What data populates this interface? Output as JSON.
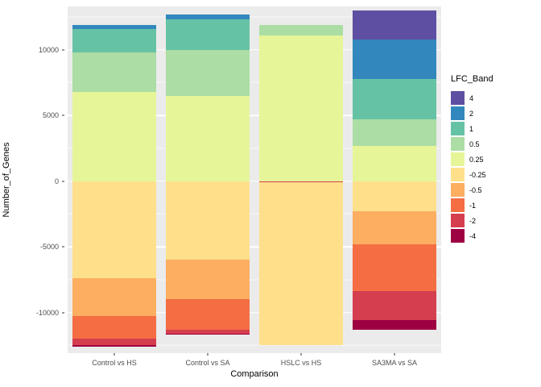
{
  "figure": {
    "background": "#FFFFFF",
    "panel_background": "#EBEBEB",
    "gridline_color": "#FFFFFF",
    "axis_text_color": "#4D4D4D"
  },
  "chart_data": {
    "type": "bar",
    "stacked": true,
    "diverging": true,
    "title": "",
    "xlabel": "Comparison",
    "ylabel": "Number_of_Genes",
    "legend_title": "LFC_Band",
    "legend_position": "right",
    "grid": true,
    "categories": [
      "Control vs HS",
      "Control vs SA",
      "HSLC vs HS",
      "SA3MA vs SA"
    ],
    "ylim": [
      -13100,
      13300
    ],
    "y_major_ticks": [
      10000,
      5000,
      0,
      -5000,
      -10000
    ],
    "y_minor_ticks": [
      12500,
      7500,
      2500,
      -2500,
      -7500,
      -12500
    ],
    "bands": [
      {
        "label": "4",
        "color": "#5E4FA2"
      },
      {
        "label": "2",
        "color": "#3288BD"
      },
      {
        "label": "1",
        "color": "#66C2A5"
      },
      {
        "label": "0.5",
        "color": "#ABDDA4"
      },
      {
        "label": "0.25",
        "color": "#E6F598"
      },
      {
        "label": "-0.25",
        "color": "#FEE08B"
      },
      {
        "label": "-0.5",
        "color": "#FDAE61"
      },
      {
        "label": "-1",
        "color": "#F46D43"
      },
      {
        "label": "-2",
        "color": "#D53E4F"
      },
      {
        "label": "-4",
        "color": "#9E0142"
      }
    ],
    "series": [
      {
        "category": "Control vs HS",
        "positive": [
          {
            "band": "0.25",
            "value": 6800
          },
          {
            "band": "0.5",
            "value": 3000
          },
          {
            "band": "1",
            "value": 1800
          },
          {
            "band": "2",
            "value": 300
          }
        ],
        "negative": [
          {
            "band": "-0.25",
            "value": 7400
          },
          {
            "band": "-0.5",
            "value": 2900
          },
          {
            "band": "-1",
            "value": 1700
          },
          {
            "band": "-2",
            "value": 500
          },
          {
            "band": "-4",
            "value": 100
          }
        ]
      },
      {
        "category": "Control vs SA",
        "positive": [
          {
            "band": "0.25",
            "value": 6500
          },
          {
            "band": "0.5",
            "value": 3500
          },
          {
            "band": "1",
            "value": 2300
          },
          {
            "band": "2",
            "value": 400
          }
        ],
        "negative": [
          {
            "band": "-0.25",
            "value": 6000
          },
          {
            "band": "-0.5",
            "value": 3000
          },
          {
            "band": "-1",
            "value": 2300
          },
          {
            "band": "-2",
            "value": 300
          },
          {
            "band": "-4",
            "value": 100
          }
        ]
      },
      {
        "category": "HSLC vs HS",
        "positive": [
          {
            "band": "0.25",
            "value": 11100
          },
          {
            "band": "0.5",
            "value": 800
          }
        ],
        "negative": [
          {
            "band": "-2",
            "value": 100
          },
          {
            "band": "-0.25",
            "value": 12400
          }
        ]
      },
      {
        "category": "SA3MA vs SA",
        "positive": [
          {
            "band": "0.25",
            "value": 2700
          },
          {
            "band": "0.5",
            "value": 2000
          },
          {
            "band": "1",
            "value": 3100
          },
          {
            "band": "2",
            "value": 3000
          },
          {
            "band": "4",
            "value": 2200
          }
        ],
        "negative": [
          {
            "band": "-0.25",
            "value": 2300
          },
          {
            "band": "-0.5",
            "value": 2500
          },
          {
            "band": "-1",
            "value": 3600
          },
          {
            "band": "-2",
            "value": 2200
          },
          {
            "band": "-4",
            "value": 700
          }
        ]
      }
    ]
  }
}
